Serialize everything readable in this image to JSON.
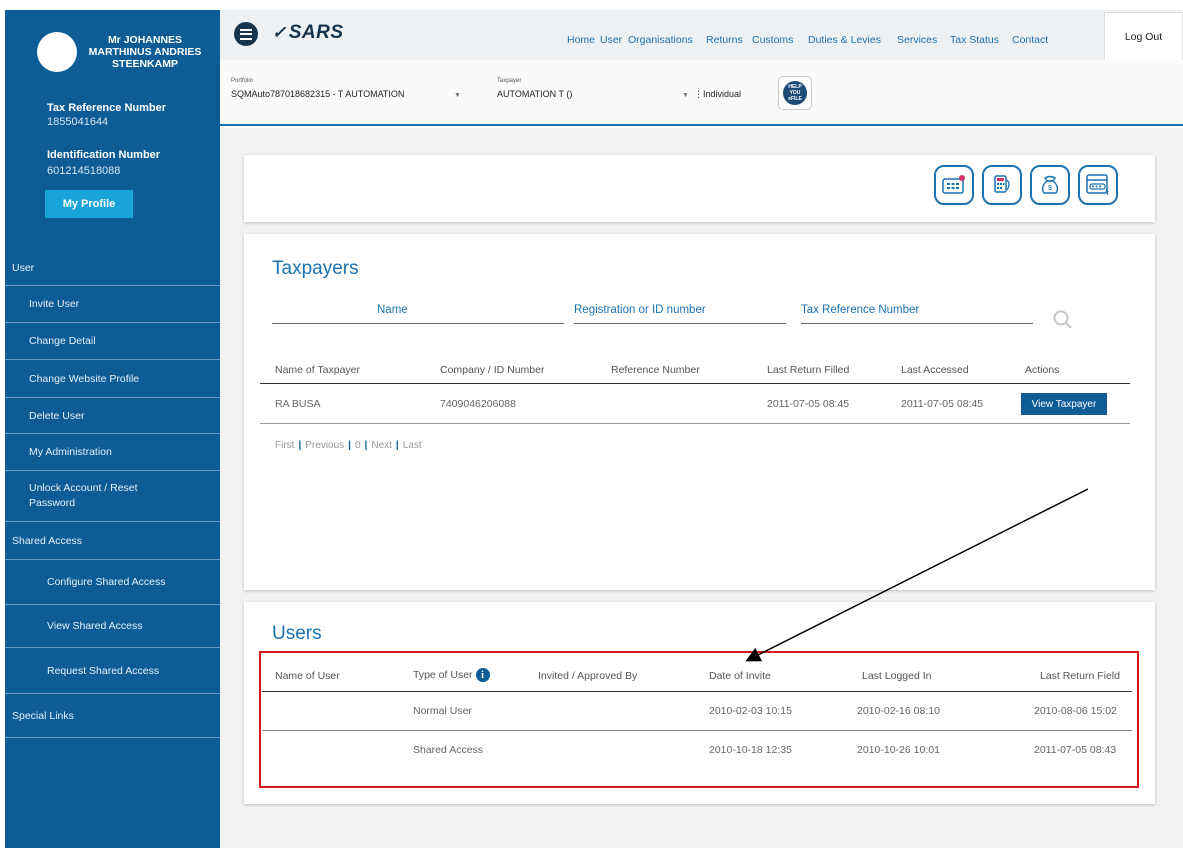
{
  "sidebar": {
    "user_name_lines": [
      "Mr JOHANNES",
      "MARTHINUS ANDRIES",
      "STEENKAMP"
    ],
    "tax_ref_label": "Tax Reference Number",
    "tax_ref_value": "1855041644",
    "id_label": "Identification Number",
    "id_value": "601214518088",
    "profile_button": "My Profile",
    "nav": [
      {
        "label": "User",
        "level": 0
      },
      {
        "label": "Invite User",
        "level": 1
      },
      {
        "label": "Change Detail",
        "level": 1
      },
      {
        "label": "Change Website Profile",
        "level": 1
      },
      {
        "label": "Delete User",
        "level": 1
      },
      {
        "label": "My Administration",
        "level": 1
      },
      {
        "label": "Unlock Account / Reset Password",
        "level": 1
      },
      {
        "label": "Shared Access",
        "level": 0
      },
      {
        "label": "Configure Shared Access",
        "level": 2
      },
      {
        "label": "View Shared Access",
        "level": 2
      },
      {
        "label": "Request Shared Access",
        "level": 2
      },
      {
        "label": "Special Links",
        "level": 0
      }
    ]
  },
  "header": {
    "logo": "SARS",
    "nav": [
      "Home",
      "User",
      "Organisations",
      "Returns",
      "Customs",
      "Duties & Levies",
      "Services",
      "Tax Status",
      "Contact"
    ],
    "logout": "Log Out"
  },
  "selector": {
    "portfolio_label": "Portfolio",
    "portfolio_value": "SQMAuto787018682315 - T AUTOMATION",
    "taxpayer_label": "Taxpayer",
    "taxpayer_value": "AUTOMATION T ()",
    "type_value": "Individual",
    "help_text": "HELP YOU eFILE"
  },
  "taxpayers": {
    "title": "Taxpayers",
    "search_fields": [
      "Name",
      "Registration or ID number",
      "Tax Reference Number"
    ],
    "columns": [
      "Name of Taxpayer",
      "Company  / ID Number",
      "Reference Number",
      "Last Return Filled",
      "Last Accessed",
      "Actions"
    ],
    "rows": [
      {
        "name": "RA BUSA",
        "company_id": "7409046206088",
        "reference": "",
        "last_return": "2011-07-05  08:45",
        "last_accessed": "2011-07-05  08:45",
        "action": "View Taxpayer"
      }
    ],
    "pager": {
      "first": "First",
      "previous": "Previous",
      "page": "0",
      "next": "Next",
      "last": "Last"
    }
  },
  "users": {
    "title": "Users",
    "columns": [
      "Name of User",
      "Type of User",
      "Invited / Approved By",
      "Date of Invite",
      "Last Logged In",
      "Last Return Field"
    ],
    "rows": [
      {
        "name": "",
        "type": "Normal User",
        "invited_by": "",
        "date_invite": "2010-02-03  10:15",
        "last_logged": "2010-02-16  08:10",
        "last_return": "2010-08-06  15:02"
      },
      {
        "name": "",
        "type": "Shared Access",
        "invited_by": "",
        "date_invite": "2010-10-18  12:35",
        "last_logged": "2010-10-26  10:01",
        "last_return": "2011-07-05  08:43"
      }
    ]
  },
  "colors": {
    "sidebar": "#0d5c96",
    "accent": "#1b72b3",
    "highlight": "#d11a1a"
  }
}
